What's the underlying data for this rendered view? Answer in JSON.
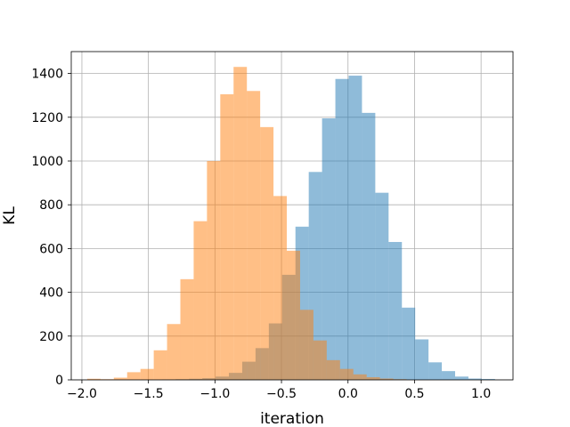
{
  "chart_data": {
    "type": "histogram",
    "xlabel": "iteration",
    "ylabel": "KL",
    "xlim": [
      -2.08,
      1.24
    ],
    "ylim": [
      0,
      1500
    ],
    "xticks": [
      -2.0,
      -1.5,
      -1.0,
      -0.5,
      0.0,
      0.5,
      1.0
    ],
    "xtick_labels": [
      "−2.0",
      "−1.5",
      "−1.0",
      "−0.5",
      "0.0",
      "0.5",
      "1.0"
    ],
    "yticks": [
      0,
      200,
      400,
      600,
      800,
      1000,
      1200,
      1400
    ],
    "ytick_labels": [
      "0",
      "200",
      "400",
      "600",
      "800",
      "1000",
      "1200",
      "1400"
    ],
    "grid": true,
    "legend": "none",
    "series": [
      {
        "color": "#1f77b4",
        "alpha": 0.5,
        "bin_edges": [
          -1.395,
          -1.295,
          -1.195,
          -1.095,
          -0.995,
          -0.895,
          -0.795,
          -0.695,
          -0.595,
          -0.495,
          -0.395,
          -0.295,
          -0.195,
          -0.095,
          0.005,
          0.105,
          0.205,
          0.305,
          0.405,
          0.505,
          0.605,
          0.705,
          0.805,
          0.905,
          1.005,
          1.105
        ],
        "counts": [
          2,
          3,
          5,
          8,
          15,
          32,
          83,
          145,
          258,
          480,
          700,
          950,
          1195,
          1375,
          1390,
          1220,
          855,
          630,
          330,
          185,
          80,
          40,
          15,
          6,
          4
        ]
      },
      {
        "color": "#ff7f0e",
        "alpha": 0.5,
        "bin_edges": [
          -1.96,
          -1.86,
          -1.76,
          -1.66,
          -1.56,
          -1.46,
          -1.36,
          -1.26,
          -1.16,
          -1.06,
          -0.96,
          -0.86,
          -0.76,
          -0.66,
          -0.56,
          -0.46,
          -0.36,
          -0.26,
          -0.16,
          -0.06,
          0.04,
          0.14,
          0.24,
          0.34,
          0.44
        ],
        "counts": [
          5,
          3,
          10,
          35,
          50,
          135,
          255,
          460,
          725,
          1000,
          1305,
          1430,
          1320,
          1155,
          840,
          590,
          320,
          180,
          90,
          50,
          25,
          12,
          6,
          3
        ]
      }
    ]
  }
}
